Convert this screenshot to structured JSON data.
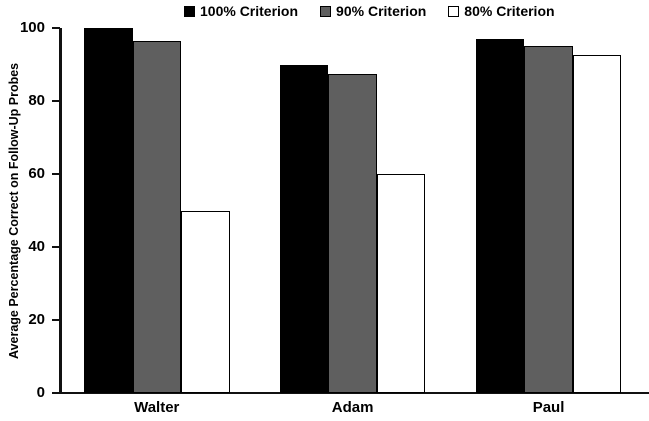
{
  "chart_data": {
    "type": "bar",
    "title": "",
    "xlabel": "",
    "ylabel": "Average Percentage Correct on Follow-Up Probes",
    "categories": [
      "Walter",
      "Adam",
      "Paul"
    ],
    "series": [
      {
        "name": "100% Criterion",
        "color": "#000000",
        "values": [
          100,
          90,
          97
        ]
      },
      {
        "name": "90% Criterion",
        "color": "#5f5f5f",
        "values": [
          96.5,
          87.5,
          95
        ]
      },
      {
        "name": "80% Criterion",
        "color": "#ffffff",
        "values": [
          50,
          60,
          92.5
        ]
      }
    ],
    "ylim": [
      0,
      100
    ],
    "yticks": [
      0,
      20,
      40,
      60,
      80,
      100
    ],
    "grid": false,
    "legend_position": "top-center",
    "bar_border_color": "#000000",
    "axis_color": "#111111"
  }
}
